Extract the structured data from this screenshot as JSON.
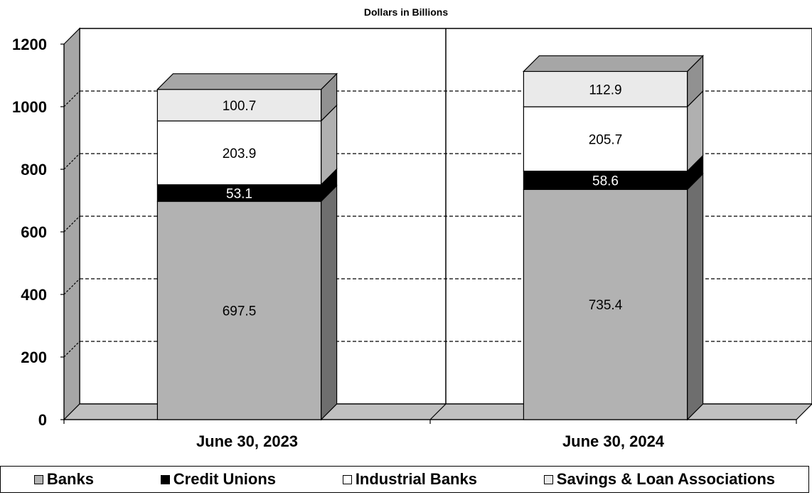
{
  "chart_data": {
    "type": "bar",
    "stacked": true,
    "three_d": true,
    "title": "Dollars in Billions",
    "xlabel": "",
    "ylabel": "",
    "categories": [
      "June 30, 2023",
      "June 30, 2024"
    ],
    "ylim": [
      0,
      1200
    ],
    "yticks": [
      "0",
      "200",
      "400",
      "600",
      "800",
      "1000",
      "1200"
    ],
    "grid": "dashed horizontal at each tick",
    "legend_position": "bottom",
    "series": [
      {
        "name": "Banks",
        "values": [
          697.5,
          735.4
        ],
        "labels": [
          "697.5",
          "735.4"
        ],
        "color": "#b2b2b2",
        "label_color": "#000000"
      },
      {
        "name": "Credit Unions",
        "values": [
          53.1,
          58.6
        ],
        "labels": [
          "53.1",
          "58.6"
        ],
        "color": "#000000",
        "label_color": "#ffffff"
      },
      {
        "name": "Industrial Banks",
        "values": [
          203.9,
          205.7
        ],
        "labels": [
          "203.9",
          "205.7"
        ],
        "color": "#ffffff",
        "label_color": "#000000"
      },
      {
        "name": "Savings & Loan Associations",
        "values": [
          100.7,
          112.9
        ],
        "labels": [
          "100.7",
          "112.9"
        ],
        "color": "#eaeaea",
        "label_color": "#000000"
      }
    ]
  }
}
